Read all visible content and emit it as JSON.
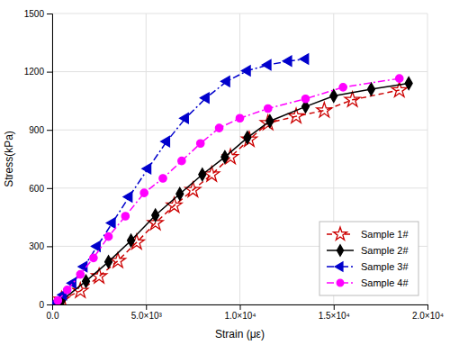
{
  "chart_data": {
    "type": "line",
    "x_label": "Strain (με)",
    "y_label": "Stress(kPa)",
    "xlim": [
      0,
      20000
    ],
    "ylim": [
      0,
      1500
    ],
    "xticks": [
      {
        "value": 0,
        "label": "0.0"
      },
      {
        "value": 5000,
        "label": "5.0×10³"
      },
      {
        "value": 10000,
        "label": "1.0×10⁴"
      },
      {
        "value": 15000,
        "label": "1.5×10⁴"
      },
      {
        "value": 20000,
        "label": "2.0×10⁴"
      }
    ],
    "yticks": [
      0,
      300,
      600,
      900,
      1200,
      1500
    ],
    "grid": true,
    "legend": "lower right",
    "series": [
      {
        "name": "Sample 1#",
        "color": "#cc0000",
        "line_style": "dashed",
        "marker": "star-open",
        "x": [
          500,
          1500,
          2500,
          3500,
          4500,
          5500,
          6500,
          7500,
          8500,
          9500,
          10500,
          11500,
          13000,
          14500,
          16000,
          18500
        ],
        "values": [
          25,
          70,
          145,
          225,
          320,
          420,
          510,
          590,
          670,
          760,
          850,
          935,
          970,
          1000,
          1055,
          1105
        ]
      },
      {
        "name": "Sample 2#",
        "color": "#000000",
        "line_style": "solid",
        "marker": "diamond",
        "x": [
          500,
          1800,
          3000,
          4200,
          5500,
          6800,
          8000,
          9200,
          10400,
          11600,
          13500,
          15000,
          17000,
          19000
        ],
        "values": [
          20,
          120,
          220,
          330,
          460,
          570,
          670,
          760,
          860,
          945,
          1020,
          1075,
          1110,
          1140
        ]
      },
      {
        "name": "Sample 3#",
        "color": "#0000cc",
        "line_style": "dashdot",
        "marker": "triangle-left",
        "x": [
          200,
          600,
          1100,
          1700,
          2400,
          3200,
          4100,
          5100,
          6100,
          7100,
          8200,
          9300,
          10400,
          11500,
          12600,
          13500
        ],
        "values": [
          10,
          50,
          110,
          195,
          300,
          420,
          555,
          700,
          840,
          960,
          1065,
          1150,
          1205,
          1235,
          1255,
          1265
        ]
      },
      {
        "name": "Sample 4#",
        "color": "#ff00ff",
        "line_style": "dashdot",
        "marker": "circle",
        "x": [
          300,
          800,
          1500,
          2200,
          3000,
          3900,
          4900,
          5900,
          6900,
          7900,
          8900,
          10000,
          11500,
          13500,
          15500,
          18500
        ],
        "values": [
          20,
          75,
          155,
          240,
          350,
          455,
          575,
          650,
          740,
          830,
          910,
          960,
          1010,
          1060,
          1120,
          1165
        ]
      }
    ]
  }
}
